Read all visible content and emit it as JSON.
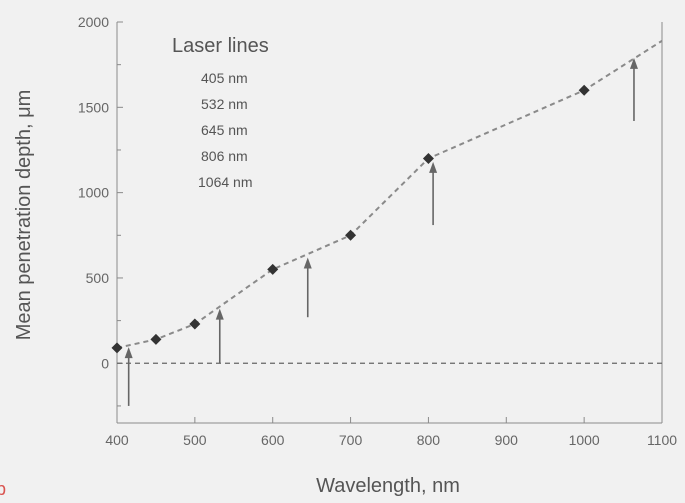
{
  "chart_data": {
    "type": "line",
    "xlabel": "Wavelength, nm",
    "ylabel": "Mean penetration depth, μm",
    "xlim": [
      400,
      1100
    ],
    "ylim": [
      -350,
      2000
    ],
    "x_ticks": [
      400,
      500,
      600,
      700,
      800,
      900,
      1000,
      1100
    ],
    "y_ticks": [
      0,
      500,
      1000,
      1500,
      2000
    ],
    "grid": false,
    "series": [
      {
        "style": "dashed-line-with-diamond-markers",
        "color": "#8a8a8a",
        "x": [
          400,
          450,
          500,
          600,
          700,
          800,
          1000,
          1100
        ],
        "y": [
          90,
          140,
          230,
          550,
          750,
          1200,
          1600,
          1890
        ],
        "markers_x": [
          400,
          450,
          500,
          600,
          700,
          800,
          1000
        ],
        "markers_y": [
          90,
          140,
          230,
          550,
          750,
          1200,
          1600
        ]
      }
    ],
    "baseline": {
      "y": 0,
      "style": "dashed"
    },
    "arrows": [
      {
        "x": 415,
        "y_from": -250,
        "y_to": 95
      },
      {
        "x": 532,
        "y_from": 0,
        "y_to": 320
      },
      {
        "x": 645,
        "y_from": 270,
        "y_to": 620
      },
      {
        "x": 806,
        "y_from": 810,
        "y_to": 1180
      },
      {
        "x": 1064,
        "y_from": 1420,
        "y_to": 1790
      }
    ],
    "legend": {
      "placement": "top-left",
      "title": "Laser lines",
      "items": [
        "405 nm",
        "532 nm",
        "645 nm",
        "806 nm",
        "1064 nm"
      ]
    }
  },
  "panel_marker": "b",
  "colors": {
    "background": "#f1f1f1",
    "axis": "#8a8a8a",
    "marker": "#333333",
    "arrow": "#666666",
    "panel_marker": "#d9534f"
  }
}
